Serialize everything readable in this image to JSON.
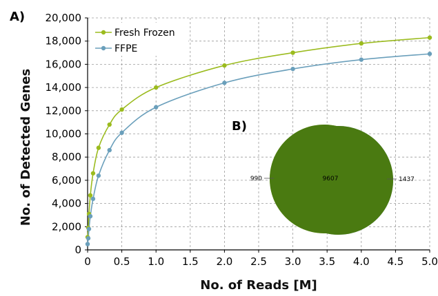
{
  "chart_data": [
    {
      "type": "line",
      "panel_label": "A)",
      "xlabel": "No. of Reads [M]",
      "ylabel": "No. of Detected Genes",
      "xlim": [
        0,
        5
      ],
      "ylim": [
        0,
        20000
      ],
      "x_ticks": [
        "0",
        "0.5",
        "1.0",
        "1.5",
        "2.0",
        "2.5",
        "3.0",
        "3.5",
        "4.0",
        "4.5",
        "5.0"
      ],
      "y_ticks": [
        "0",
        "2,000",
        "4,000",
        "6,000",
        "8,000",
        "10,000",
        "12,000",
        "14,000",
        "16,000",
        "18,000",
        "20,000"
      ],
      "grid": true,
      "legend_position": "top-left",
      "series": [
        {
          "name": "Fresh Frozen",
          "color": "#9bbb1e",
          "x": [
            0,
            0.01,
            0.02,
            0.04,
            0.08,
            0.16,
            0.32,
            0.5,
            1.0,
            2.0,
            3.0,
            4.0,
            5.0
          ],
          "y": [
            1100,
            1900,
            3100,
            4700,
            6600,
            8800,
            10800,
            12100,
            14000,
            15900,
            17000,
            17800,
            18300
          ]
        },
        {
          "name": "FFPE",
          "color": "#6a9fbb",
          "x": [
            0,
            0.01,
            0.02,
            0.04,
            0.08,
            0.16,
            0.32,
            0.5,
            1.0,
            2.0,
            3.0,
            4.0,
            5.0
          ],
          "y": [
            500,
            1000,
            1800,
            2900,
            4400,
            6400,
            8600,
            10100,
            12300,
            14400,
            15600,
            16400,
            16900
          ]
        }
      ]
    },
    {
      "type": "venn",
      "panel_label": "B)",
      "sets": [
        {
          "only": 990,
          "color": "#9bbb1e"
        },
        {
          "only": 1437,
          "color": "#6a9fbb"
        }
      ],
      "overlap": 9607,
      "overlap_color": "#4a7a11",
      "labels": [
        "990",
        "9607",
        "1437"
      ]
    }
  ]
}
